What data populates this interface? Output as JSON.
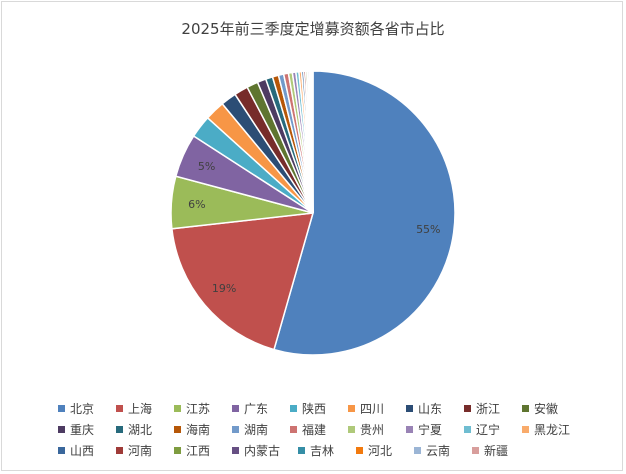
{
  "chart_data": {
    "type": "pie",
    "title": "2025年前三季度定增募资额各省市占比",
    "categories": [
      "北京",
      "上海",
      "江苏",
      "广东",
      "陕西",
      "四川",
      "山东",
      "浙江",
      "安徽",
      "重庆",
      "湖北",
      "海南",
      "湖南",
      "福建",
      "贵州",
      "宁夏",
      "辽宁",
      "黑龙江",
      "山西",
      "河南",
      "江西",
      "内蒙古",
      "吉林",
      "河北",
      "云南",
      "新疆"
    ],
    "values": [
      55.0,
      19.0,
      6.0,
      5.0,
      2.6,
      2.3,
      1.8,
      1.6,
      1.3,
      1.0,
      0.8,
      0.7,
      0.6,
      0.55,
      0.45,
      0.4,
      0.35,
      0.3,
      0.25,
      0.22,
      0.2,
      0.18,
      0.15,
      0.12,
      0.1,
      0.08
    ],
    "data_labels": [
      "55%",
      "19%",
      "6%",
      "5%",
      "",
      "",
      "",
      "",
      "",
      "",
      "",
      "",
      "",
      "",
      "",
      "",
      "",
      "",
      "",
      "",
      "",
      "",
      "",
      "",
      "",
      ""
    ],
    "colors": [
      "#4f81bd",
      "#c0504d",
      "#9bbb59",
      "#8064a2",
      "#4bacc6",
      "#f79646",
      "#2c4d75",
      "#772c2a",
      "#5f7530",
      "#4d3b62",
      "#276a7c",
      "#b65708",
      "#729aca",
      "#cd7371",
      "#afc97a",
      "#9983b5",
      "#6fbdd1",
      "#f9ab6b",
      "#3a679c",
      "#9f3b38",
      "#7e9c40",
      "#664f83",
      "#358ea6",
      "#f27a0e",
      "#9bb5d5",
      "#d89e9c"
    ],
    "legend_position": "bottom"
  }
}
